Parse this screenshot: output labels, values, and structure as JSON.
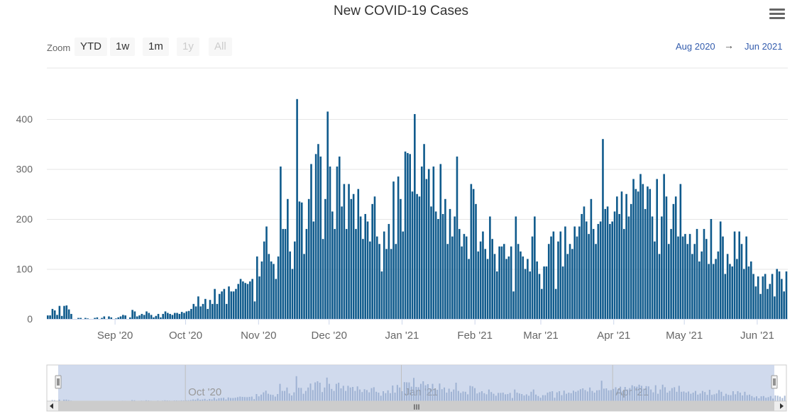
{
  "chart_data": {
    "type": "bar",
    "title": "New COVID-19 Cases",
    "x_start": "2020-08-03",
    "y_ticks": [
      "0",
      "100",
      "200",
      "300",
      "400"
    ],
    "ylim": [
      0,
      450
    ],
    "grid": true,
    "bar_color": "#0f5a8c",
    "x_tick_labels": [
      "Sep '20",
      "Oct '20",
      "Nov '20",
      "Dec '20",
      "Jan '21",
      "Feb '21",
      "Mar '21",
      "Apr '21",
      "May '21",
      "Jun '21"
    ],
    "x_tick_dates": [
      "2020-09-01",
      "2020-10-01",
      "2020-11-01",
      "2020-12-01",
      "2021-01-01",
      "2021-02-01",
      "2021-03-01",
      "2021-04-01",
      "2021-05-01",
      "2021-06-01"
    ],
    "values": [
      7,
      7,
      20,
      17,
      8,
      26,
      6,
      26,
      27,
      19,
      10,
      0,
      0,
      2,
      2,
      0,
      2,
      1,
      0,
      0,
      2,
      3,
      0,
      2,
      5,
      0,
      5,
      3,
      0,
      1,
      3,
      5,
      8,
      7,
      0,
      3,
      18,
      15,
      5,
      7,
      10,
      8,
      15,
      12,
      8,
      3,
      6,
      10,
      3,
      10,
      15,
      12,
      10,
      8,
      12,
      12,
      10,
      14,
      12,
      15,
      16,
      20,
      30,
      25,
      45,
      25,
      30,
      40,
      20,
      38,
      30,
      60,
      30,
      50,
      55,
      60,
      30,
      65,
      55,
      55,
      60,
      70,
      80,
      75,
      72,
      70,
      75,
      80,
      35,
      125,
      85,
      115,
      155,
      185,
      130,
      115,
      110,
      80,
      125,
      305,
      180,
      180,
      240,
      135,
      100,
      155,
      440,
      235,
      233,
      130,
      180,
      240,
      310,
      195,
      330,
      350,
      325,
      160,
      240,
      415,
      305,
      215,
      180,
      305,
      325,
      225,
      270,
      180,
      270,
      240,
      250,
      180,
      260,
      205,
      160,
      210,
      195,
      155,
      230,
      245,
      165,
      150,
      95,
      175,
      140,
      190,
      140,
      275,
      150,
      285,
      240,
      175,
      335,
      332,
      330,
      255,
      410,
      250,
      245,
      305,
      350,
      280,
      300,
      225,
      305,
      215,
      200,
      310,
      210,
      240,
      150,
      220,
      165,
      205,
      325,
      180,
      145,
      170,
      165,
      120,
      270,
      260,
      230,
      135,
      155,
      175,
      140,
      120,
      205,
      160,
      130,
      95,
      145,
      145,
      150,
      120,
      125,
      145,
      55,
      205,
      150,
      135,
      125,
      100,
      120,
      95,
      165,
      205,
      115,
      90,
      60,
      105,
      105,
      150,
      165,
      175,
      60,
      155,
      175,
      105,
      185,
      130,
      150,
      140,
      185,
      165,
      185,
      210,
      225,
      195,
      170,
      240,
      180,
      150,
      190,
      195,
      360,
      220,
      225,
      190,
      195,
      215,
      245,
      210,
      255,
      180,
      250,
      205,
      230,
      280,
      260,
      255,
      290,
      270,
      220,
      265,
      260,
      205,
      155,
      280,
      130,
      205,
      290,
      245,
      150,
      180,
      230,
      245,
      165,
      270,
      165,
      170,
      150,
      170,
      130,
      150,
      180,
      115,
      135,
      180,
      160,
      110,
      200,
      110,
      120,
      135,
      195,
      165,
      90,
      130,
      110,
      105,
      175,
      120,
      175,
      150,
      100,
      165,
      105,
      115,
      90,
      65,
      85,
      50,
      85,
      90,
      60,
      70,
      90,
      45,
      100,
      95,
      80,
      55,
      95
    ]
  },
  "toolbar": {
    "zoom_label": "Zoom",
    "buttons": [
      "YTD",
      "1w",
      "1m",
      "1y",
      "All"
    ],
    "range_from": "Aug 2020",
    "range_arrow": "→",
    "range_to": "Jun 2021"
  },
  "navigator": {
    "tick_labels": [
      "Oct '20",
      "Jan '21",
      "Apr '21"
    ],
    "tick_dates": [
      "2020-10-01",
      "2021-01-01",
      "2021-04-01"
    ],
    "scroll_grip": "III",
    "colors": {
      "mask": "#c8d3ea",
      "line": "#8ea4c9"
    }
  },
  "menu_icon": "hamburger-icon"
}
